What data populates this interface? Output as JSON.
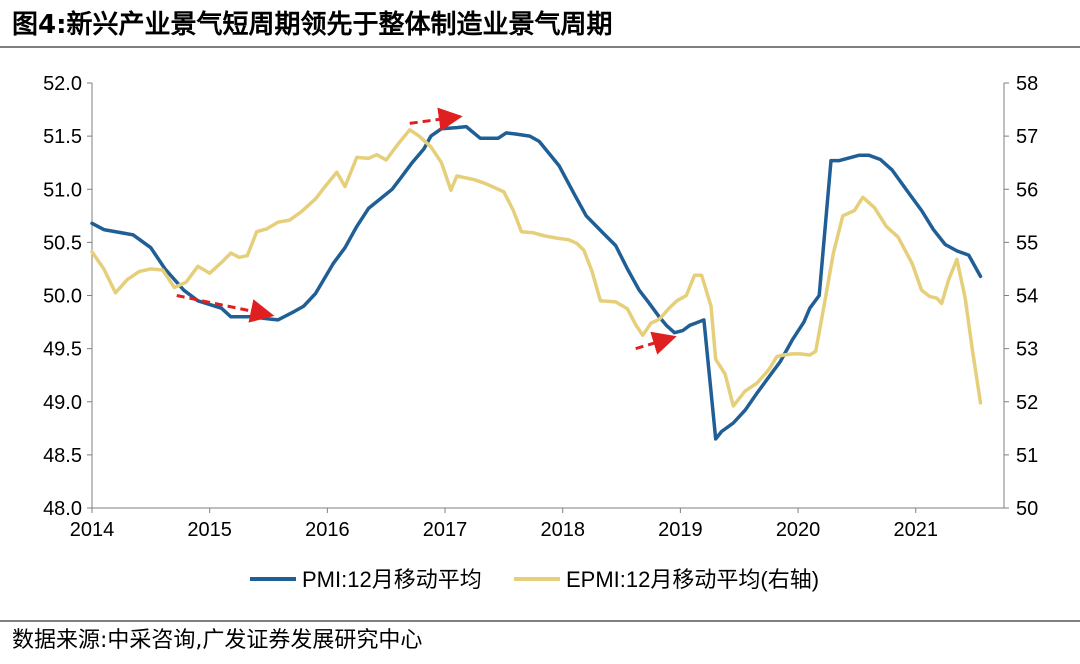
{
  "figure": {
    "title": "图4:新兴产业景气短周期领先于整体制造业景气周期",
    "source": "数据来源:中采咨询,广发证券发展研究中心"
  },
  "colors": {
    "pmi": "#1f5f95",
    "epmi": "#e6cf7a",
    "arrow": "#e02020",
    "axis": "#7f7f7f"
  },
  "chart_data": {
    "type": "line",
    "x_axis": {
      "min": 2014.0,
      "max": 2021.75,
      "ticks": [
        {
          "value": 2014.0,
          "label": "2014"
        },
        {
          "value": 2015.0,
          "label": "2015"
        },
        {
          "value": 2016.0,
          "label": "2016"
        },
        {
          "value": 2017.0,
          "label": "2017"
        },
        {
          "value": 2018.0,
          "label": "2018"
        },
        {
          "value": 2019.0,
          "label": "2019"
        },
        {
          "value": 2020.0,
          "label": "2020"
        },
        {
          "value": 2021.0,
          "label": "2021"
        }
      ]
    },
    "y_left": {
      "min": 48.0,
      "max": 52.0,
      "ticks": [
        {
          "value": 48.0,
          "label": "48.0"
        },
        {
          "value": 48.5,
          "label": "48.5"
        },
        {
          "value": 49.0,
          "label": "49.0"
        },
        {
          "value": 49.5,
          "label": "49.5"
        },
        {
          "value": 50.0,
          "label": "50.0"
        },
        {
          "value": 50.5,
          "label": "50.5"
        },
        {
          "value": 51.0,
          "label": "51.0"
        },
        {
          "value": 51.5,
          "label": "51.5"
        },
        {
          "value": 52.0,
          "label": "52.0"
        }
      ]
    },
    "y_right": {
      "min": 50,
      "max": 58,
      "ticks": [
        {
          "value": 50,
          "label": "50"
        },
        {
          "value": 51,
          "label": "51"
        },
        {
          "value": 52,
          "label": "52"
        },
        {
          "value": 53,
          "label": "53"
        },
        {
          "value": 54,
          "label": "54"
        },
        {
          "value": 55,
          "label": "55"
        },
        {
          "value": 56,
          "label": "56"
        },
        {
          "value": 57,
          "label": "57"
        },
        {
          "value": 58,
          "label": "58"
        }
      ]
    },
    "legend_position": "bottom-center",
    "series": [
      {
        "name": "PMI:12月移动平均",
        "axis": "left",
        "points": [
          [
            2014.0,
            50.68
          ],
          [
            2014.1,
            50.62
          ],
          [
            2014.35,
            50.57
          ],
          [
            2014.5,
            50.45
          ],
          [
            2014.62,
            50.25
          ],
          [
            2014.78,
            50.05
          ],
          [
            2014.9,
            49.95
          ],
          [
            2015.1,
            49.88
          ],
          [
            2015.18,
            49.8
          ],
          [
            2015.35,
            49.8
          ],
          [
            2015.5,
            49.78
          ],
          [
            2015.58,
            49.77
          ],
          [
            2015.72,
            49.85
          ],
          [
            2015.8,
            49.9
          ],
          [
            2015.9,
            50.02
          ],
          [
            2016.05,
            50.3
          ],
          [
            2016.15,
            50.45
          ],
          [
            2016.25,
            50.65
          ],
          [
            2016.35,
            50.82
          ],
          [
            2016.55,
            51.0
          ],
          [
            2016.62,
            51.1
          ],
          [
            2016.72,
            51.25
          ],
          [
            2016.82,
            51.38
          ],
          [
            2016.88,
            51.5
          ],
          [
            2016.97,
            51.57
          ],
          [
            2017.1,
            51.58
          ],
          [
            2017.18,
            51.59
          ],
          [
            2017.3,
            51.48
          ],
          [
            2017.45,
            51.48
          ],
          [
            2017.52,
            51.53
          ],
          [
            2017.6,
            51.52
          ],
          [
            2017.72,
            51.5
          ],
          [
            2017.8,
            51.45
          ],
          [
            2017.97,
            51.22
          ],
          [
            2018.1,
            50.95
          ],
          [
            2018.2,
            50.75
          ],
          [
            2018.35,
            50.58
          ],
          [
            2018.45,
            50.47
          ],
          [
            2018.55,
            50.25
          ],
          [
            2018.65,
            50.05
          ],
          [
            2018.72,
            49.95
          ],
          [
            2018.82,
            49.8
          ],
          [
            2018.88,
            49.72
          ],
          [
            2018.95,
            49.65
          ],
          [
            2019.02,
            49.67
          ],
          [
            2019.08,
            49.72
          ],
          [
            2019.13,
            49.74
          ],
          [
            2019.2,
            49.77
          ],
          [
            2019.3,
            48.65
          ],
          [
            2019.35,
            48.72
          ],
          [
            2019.45,
            48.8
          ],
          [
            2019.55,
            48.92
          ],
          [
            2019.65,
            49.08
          ],
          [
            2019.75,
            49.23
          ],
          [
            2019.85,
            49.38
          ],
          [
            2019.95,
            49.58
          ],
          [
            2020.05,
            49.75
          ],
          [
            2020.1,
            49.88
          ],
          [
            2020.18,
            50.0
          ],
          [
            2020.28,
            51.27
          ],
          [
            2020.35,
            51.27
          ],
          [
            2020.45,
            51.3
          ],
          [
            2020.52,
            51.32
          ],
          [
            2020.6,
            51.32
          ],
          [
            2020.7,
            51.28
          ],
          [
            2020.8,
            51.18
          ],
          [
            2020.95,
            50.95
          ],
          [
            2021.05,
            50.8
          ],
          [
            2021.15,
            50.62
          ],
          [
            2021.25,
            50.48
          ],
          [
            2021.35,
            50.42
          ],
          [
            2021.45,
            50.38
          ],
          [
            2021.55,
            50.18
          ]
        ]
      },
      {
        "name": "EPMI:12月移动平均(右轴)",
        "axis": "right",
        "points": [
          [
            2014.0,
            54.82
          ],
          [
            2014.1,
            54.5
          ],
          [
            2014.2,
            54.05
          ],
          [
            2014.3,
            54.3
          ],
          [
            2014.4,
            54.45
          ],
          [
            2014.5,
            54.5
          ],
          [
            2014.6,
            54.48
          ],
          [
            2014.7,
            54.15
          ],
          [
            2014.8,
            54.25
          ],
          [
            2014.9,
            54.55
          ],
          [
            2015.0,
            54.42
          ],
          [
            2015.1,
            54.62
          ],
          [
            2015.18,
            54.8
          ],
          [
            2015.25,
            54.72
          ],
          [
            2015.32,
            54.75
          ],
          [
            2015.4,
            55.2
          ],
          [
            2015.48,
            55.25
          ],
          [
            2015.58,
            55.38
          ],
          [
            2015.68,
            55.42
          ],
          [
            2015.78,
            55.58
          ],
          [
            2015.9,
            55.82
          ],
          [
            2015.98,
            56.05
          ],
          [
            2016.08,
            56.32
          ],
          [
            2016.15,
            56.05
          ],
          [
            2016.25,
            56.6
          ],
          [
            2016.35,
            56.58
          ],
          [
            2016.42,
            56.65
          ],
          [
            2016.5,
            56.55
          ],
          [
            2016.6,
            56.85
          ],
          [
            2016.7,
            57.12
          ],
          [
            2016.78,
            57.0
          ],
          [
            2016.88,
            56.8
          ],
          [
            2016.97,
            56.5
          ],
          [
            2017.05,
            55.98
          ],
          [
            2017.1,
            56.25
          ],
          [
            2017.25,
            56.18
          ],
          [
            2017.35,
            56.1
          ],
          [
            2017.5,
            55.95
          ],
          [
            2017.58,
            55.6
          ],
          [
            2017.65,
            55.2
          ],
          [
            2017.75,
            55.18
          ],
          [
            2017.85,
            55.12
          ],
          [
            2017.95,
            55.08
          ],
          [
            2018.05,
            55.05
          ],
          [
            2018.12,
            54.98
          ],
          [
            2018.18,
            54.85
          ],
          [
            2018.25,
            54.45
          ],
          [
            2018.32,
            53.9
          ],
          [
            2018.45,
            53.88
          ],
          [
            2018.55,
            53.75
          ],
          [
            2018.62,
            53.45
          ],
          [
            2018.68,
            53.25
          ],
          [
            2018.75,
            53.48
          ],
          [
            2018.82,
            53.55
          ],
          [
            2018.9,
            53.75
          ],
          [
            2018.97,
            53.9
          ],
          [
            2019.05,
            54.0
          ],
          [
            2019.12,
            54.38
          ],
          [
            2019.18,
            54.38
          ],
          [
            2019.26,
            53.8
          ],
          [
            2019.3,
            52.8
          ],
          [
            2019.38,
            52.52
          ],
          [
            2019.45,
            51.92
          ],
          [
            2019.55,
            52.2
          ],
          [
            2019.65,
            52.35
          ],
          [
            2019.75,
            52.6
          ],
          [
            2019.82,
            52.85
          ],
          [
            2019.88,
            52.88
          ],
          [
            2019.95,
            52.9
          ],
          [
            2020.02,
            52.9
          ],
          [
            2020.1,
            52.88
          ],
          [
            2020.15,
            52.95
          ],
          [
            2020.22,
            53.8
          ],
          [
            2020.3,
            54.8
          ],
          [
            2020.38,
            55.5
          ],
          [
            2020.48,
            55.6
          ],
          [
            2020.55,
            55.85
          ],
          [
            2020.65,
            55.65
          ],
          [
            2020.75,
            55.3
          ],
          [
            2020.85,
            55.1
          ],
          [
            2020.97,
            54.6
          ],
          [
            2021.05,
            54.1
          ],
          [
            2021.12,
            53.98
          ],
          [
            2021.18,
            53.95
          ],
          [
            2021.22,
            53.85
          ],
          [
            2021.28,
            54.3
          ],
          [
            2021.35,
            54.68
          ],
          [
            2021.42,
            53.95
          ],
          [
            2021.48,
            53.0
          ],
          [
            2021.55,
            51.98
          ]
        ]
      }
    ],
    "annotations": [
      {
        "type": "dashed-arrow",
        "axis": "left",
        "from": [
          2014.72,
          50.0
        ],
        "to": [
          2015.5,
          49.82
        ]
      },
      {
        "type": "dashed-arrow",
        "axis": "left",
        "from": [
          2016.7,
          51.62
        ],
        "to": [
          2017.1,
          51.68
        ]
      },
      {
        "type": "dashed-arrow",
        "axis": "left",
        "from": [
          2018.62,
          49.5
        ],
        "to": [
          2018.92,
          49.6
        ]
      }
    ]
  }
}
